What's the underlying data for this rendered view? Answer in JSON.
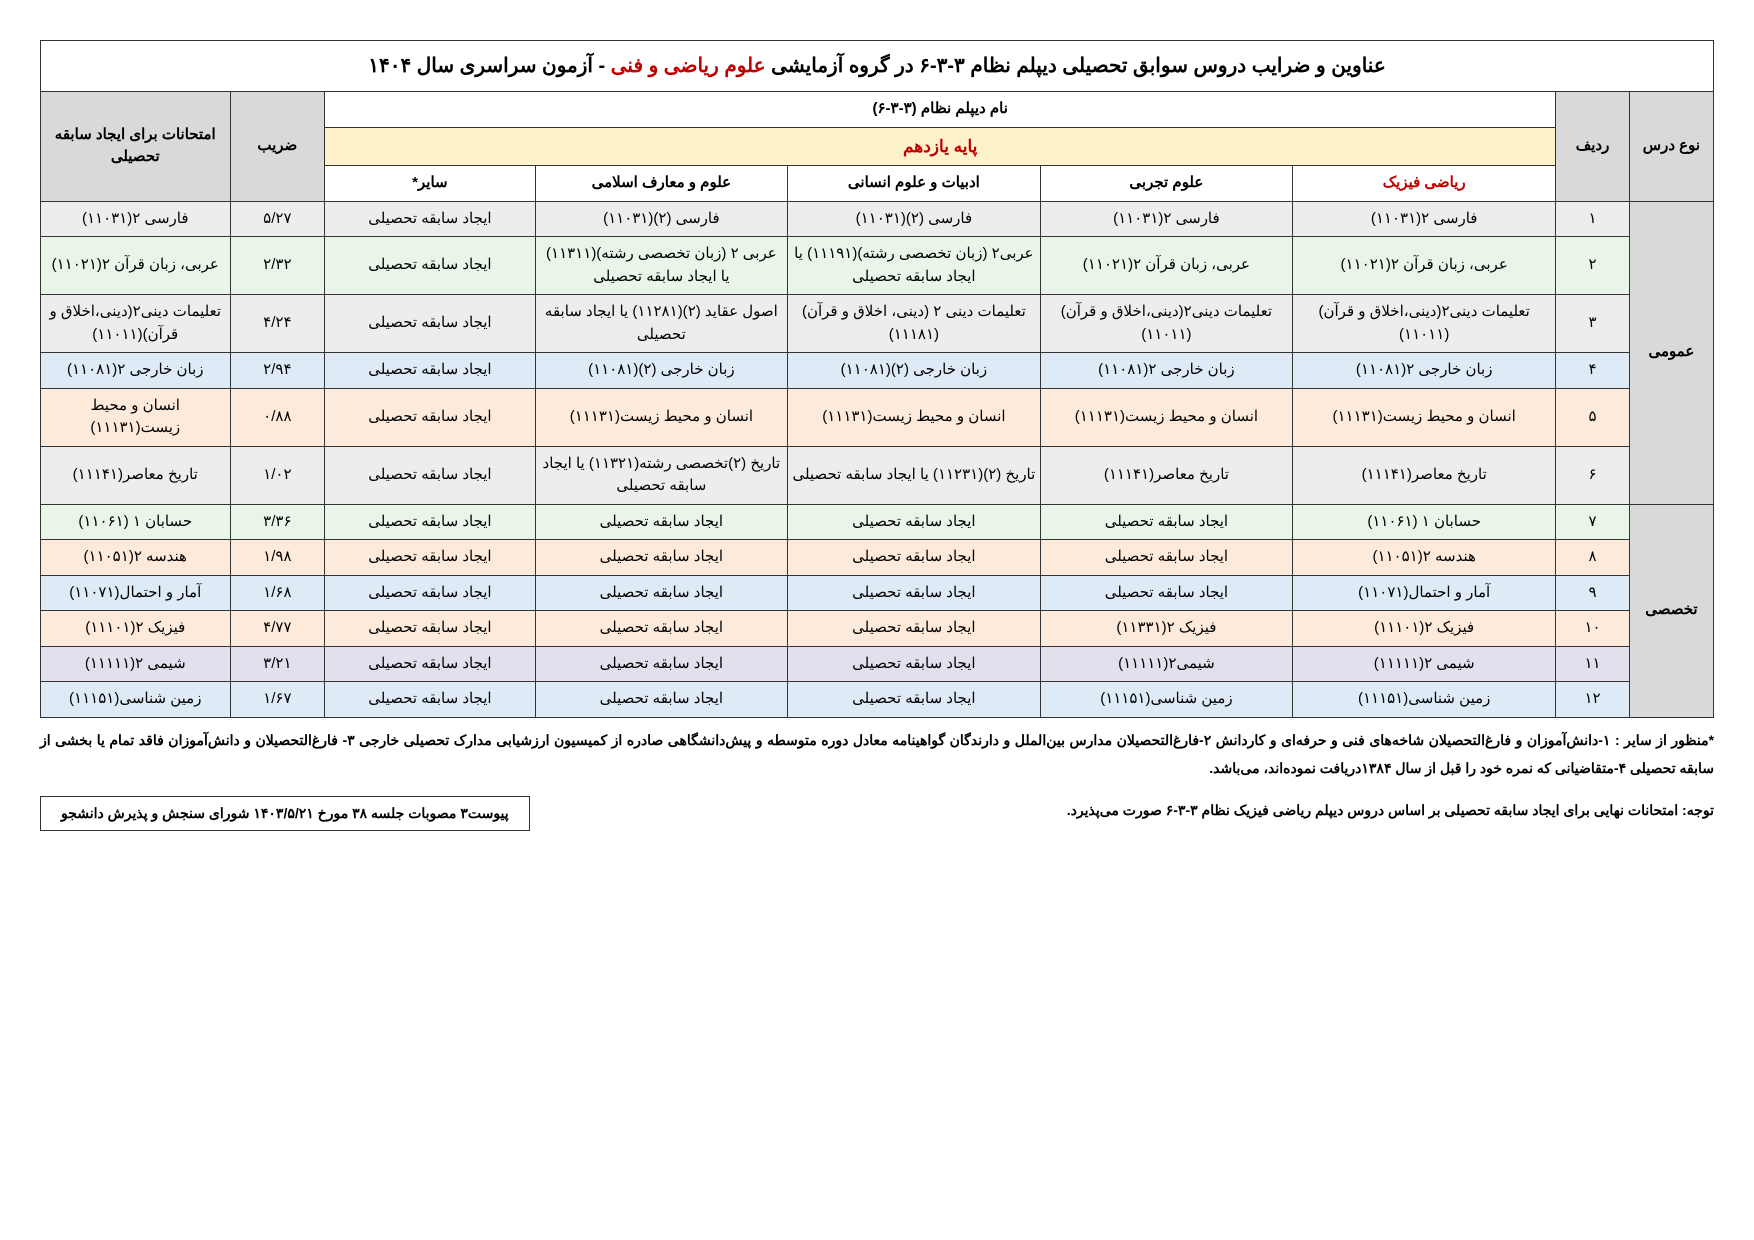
{
  "title_pre": "عناوین و ضرایب دروس سوابق تحصیلی دیپلم نظام ۳-۳-۶ در گروه آزمایشی ",
  "title_mid": "علوم ریاضی و فنی",
  "title_post": " - آزمون سراسری سال ۱۴۰۴",
  "hdr_type": "نوع درس",
  "hdr_row": "ردیف",
  "hdr_super": "نام دیپلم نظام (۳-۳-۶)",
  "hdr_grade": "پایه یازدهم",
  "hdr_coef": "ضریب",
  "hdr_exam": "امتحانات برای ایجاد سابقه تحصیلی",
  "col_phys": "ریاضی فیزیک",
  "col_exp": "علوم تجربی",
  "col_hum": "ادبیات و علوم انسانی",
  "col_isl": "علوم و معارف اسلامی",
  "col_other": "سایر*",
  "type_gen": "عمومی",
  "type_spec": "تخصصی",
  "rows": [
    {
      "n": "۱",
      "c0": "فارسی ۲(۱۱۰۳۱)",
      "c1": "فارسی ۲(۱۱۰۳۱)",
      "c2": "فارسی (۲)(۱۱۰۳۱)",
      "c3": "فارسی (۲)(۱۱۰۳۱)",
      "c4": "ایجاد سابقه تحصیلی",
      "coef": "۵/۲۷",
      "exam": "فارسی ۲(۱۱۰۳۱)"
    },
    {
      "n": "۲",
      "c0": "عربی، زبان قرآن ۲(۱۱۰۲۱)",
      "c1": "عربی، زبان قرآن ۲(۱۱۰۲۱)",
      "c2": "عربی۲ (زبان تخصصی رشته)(۱۱۱۹۱) یا ایجاد سابقه تحصیلی",
      "c3": "عربی ۲ (زبان تخصصی رشته)(۱۱۳۱۱) یا ایجاد سابقه تحصیلی",
      "c4": "ایجاد سابقه تحصیلی",
      "coef": "۲/۳۲",
      "exam": "عربی، زبان قرآن ۲(۱۱۰۲۱)"
    },
    {
      "n": "۳",
      "c0": "تعلیمات دینی۲(دینی،اخلاق و قرآن)(۱۱۰۱۱)",
      "c1": "تعلیمات دینی۲(دینی،اخلاق و قرآن)(۱۱۰۱۱)",
      "c2": "تعلیمات دینی ۲ (دینی، اخلاق و قرآن)(۱۱۱۸۱)",
      "c3": "اصول عقاید (۲)(۱۱۲۸۱) یا ایجاد سابقه تحصیلی",
      "c4": "ایجاد سابقه تحصیلی",
      "coef": "۴/۲۴",
      "exam": "تعلیمات دینی۲(دینی،اخلاق و قرآن)(۱۱۰۱۱)"
    },
    {
      "n": "۴",
      "c0": "زبان خارجی ۲(۱۱۰۸۱)",
      "c1": "زبان خارجی ۲(۱۱۰۸۱)",
      "c2": "زبان خارجی (۲)(۱۱۰۸۱)",
      "c3": "زبان خارجی (۲)(۱۱۰۸۱)",
      "c4": "ایجاد سابقه تحصیلی",
      "coef": "۲/۹۴",
      "exam": "زبان خارجی ۲(۱۱۰۸۱)"
    },
    {
      "n": "۵",
      "c0": "انسان و محیط زیست(۱۱۱۳۱)",
      "c1": "انسان و محیط زیست(۱۱۱۳۱)",
      "c2": "انسان و محیط زیست(۱۱۱۳۱)",
      "c3": "انسان و محیط زیست(۱۱۱۳۱)",
      "c4": "ایجاد سابقه تحصیلی",
      "coef": "۰/۸۸",
      "exam": "انسان و محیط زیست(۱۱۱۳۱)"
    },
    {
      "n": "۶",
      "c0": "تاریخ معاصر(۱۱۱۴۱)",
      "c1": "تاریخ معاصر(۱۱۱۴۱)",
      "c2": "تاریخ (۲)(۱۱۲۳۱) یا ایجاد سابقه تحصیلی",
      "c3": "تاریخ (۲)تخصصی رشته(۱۱۳۲۱) یا ایجاد سابقه تحصیلی",
      "c4": "ایجاد سابقه تحصیلی",
      "coef": "۱/۰۲",
      "exam": "تاریخ معاصر(۱۱۱۴۱)"
    },
    {
      "n": "۷",
      "c0": "حسابان ۱ (۱۱۰۶۱)",
      "c1": "ایجاد سابقه تحصیلی",
      "c2": "ایجاد سابقه تحصیلی",
      "c3": "ایجاد سابقه تحصیلی",
      "c4": "ایجاد سابقه تحصیلی",
      "coef": "۳/۳۶",
      "exam": "حسابان ۱ (۱۱۰۶۱)"
    },
    {
      "n": "۸",
      "c0": "هندسه ۲(۱۱۰۵۱)",
      "c1": "ایجاد سابقه تحصیلی",
      "c2": "ایجاد سابقه تحصیلی",
      "c3": "ایجاد سابقه تحصیلی",
      "c4": "ایجاد سابقه تحصیلی",
      "coef": "۱/۹۸",
      "exam": "هندسه ۲(۱۱۰۵۱)"
    },
    {
      "n": "۹",
      "c0": "آمار و احتمال(۱۱۰۷۱)",
      "c1": "ایجاد سابقه تحصیلی",
      "c2": "ایجاد سابقه تحصیلی",
      "c3": "ایجاد سابقه تحصیلی",
      "c4": "ایجاد سابقه تحصیلی",
      "coef": "۱/۶۸",
      "exam": "آمار و احتمال(۱۱۰۷۱)"
    },
    {
      "n": "۱۰",
      "c0": "فیزیک ۲(۱۱۱۰۱)",
      "c1": "فیزیک ۲(۱۱۳۳۱)",
      "c2": "ایجاد سابقه تحصیلی",
      "c3": "ایجاد سابقه تحصیلی",
      "c4": "ایجاد سابقه تحصیلی",
      "coef": "۴/۷۷",
      "exam": "فیزیک ۲(۱۱۱۰۱)"
    },
    {
      "n": "۱۱",
      "c0": "شیمی ۲(۱۱۱۱۱)",
      "c1": "شیمی۲(۱۱۱۱۱)",
      "c2": "ایجاد سابقه تحصیلی",
      "c3": "ایجاد سابقه تحصیلی",
      "c4": "ایجاد سابقه تحصیلی",
      "coef": "۳/۲۱",
      "exam": "شیمی ۲(۱۱۱۱۱)"
    },
    {
      "n": "۱۲",
      "c0": "زمین شناسی(۱۱۱۵۱)",
      "c1": "زمین شناسی(۱۱۱۵۱)",
      "c2": "ایجاد سابقه تحصیلی",
      "c3": "ایجاد سابقه تحصیلی",
      "c4": "ایجاد سابقه تحصیلی",
      "coef": "۱/۶۷",
      "exam": "زمین شناسی(۱۱۱۵۱)"
    }
  ],
  "foot1": "*منظور از سایر : ۱-دانش‌آموزان و فارغ‌التحصیلان شاخه‌های فنی و حرفه‌ای و کاردانش ۲-فارغ‌التحصیلان مدارس بین‌الملل و دارندگان گواهینامه معادل دوره متوسطه و پیش‌دانشگاهی صادره از کمیسیون ارزشیابی مدارک تحصیلی خارجی ۳- فارغ‌التحصیلان و دانش‌آموزان فاقد تمام یا بخشی از سابقه تحصیلی ۴-متقاضیانی که نمره خود را قبل از سال ۱۳۸۴دریافت نموده‌اند، می‌باشد.",
  "note": "توجه: امتحانات نهایی برای ایجاد سابقه تحصیلی بر اساس دروس دیپلم ریاضی فیزیک نظام ۳-۳-۶ صورت می‌پذیرد.",
  "attach": "پیوست۳ مصوبات جلسه ۳۸ مورخ ۱۴۰۳/۵/۲۱ شورای سنجش و پذیرش دانشجو",
  "row_colors": [
    "row-grey",
    "row-green",
    "row-grey",
    "row-blue",
    "row-pink",
    "row-grey",
    "row-green",
    "row-pink",
    "row-blue",
    "row-pink",
    "row-lilac",
    "row-blue"
  ]
}
